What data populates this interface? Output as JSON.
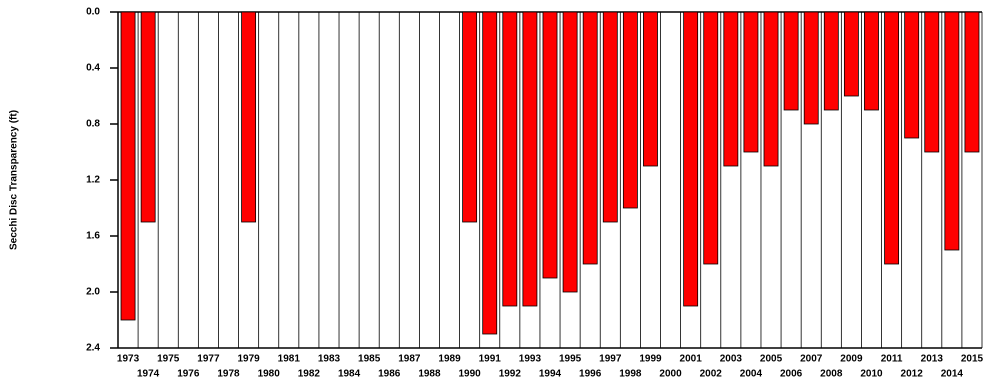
{
  "chart_data": {
    "type": "bar",
    "y_label": "Secchi Disc Transparency (ft)",
    "categories": [
      "1973",
      "1974",
      "1975",
      "1976",
      "1977",
      "1978",
      "1979",
      "1980",
      "1981",
      "1982",
      "1983",
      "1984",
      "1985",
      "1986",
      "1987",
      "1988",
      "1989",
      "1990",
      "1991",
      "1992",
      "1993",
      "1994",
      "1995",
      "1996",
      "1997",
      "1998",
      "1999",
      "2000",
      "2001",
      "2002",
      "2003",
      "2004",
      "2005",
      "2006",
      "2007",
      "2008",
      "2009",
      "2010",
      "2011",
      "2012",
      "2013",
      "2014",
      "2015"
    ],
    "values": [
      2.2,
      1.5,
      null,
      null,
      null,
      null,
      1.5,
      null,
      null,
      null,
      null,
      null,
      null,
      null,
      null,
      null,
      null,
      1.5,
      2.3,
      2.1,
      2.1,
      1.9,
      2.0,
      1.8,
      1.5,
      1.4,
      1.1,
      null,
      2.1,
      1.8,
      1.1,
      1.0,
      1.1,
      0.7,
      0.8,
      0.7,
      0.6,
      0.7,
      1.8,
      0.9,
      1.0,
      1.7,
      1.0
    ],
    "color": "#ff0000",
    "ylim": [
      0,
      2.4
    ],
    "yticks": [
      {
        "value": 0,
        "label": "0.0"
      },
      0.4,
      0.8,
      1.2,
      1.6,
      {
        "value": 2.0,
        "label": "2.0"
      },
      2.4
    ],
    "y_inverted": true
  }
}
